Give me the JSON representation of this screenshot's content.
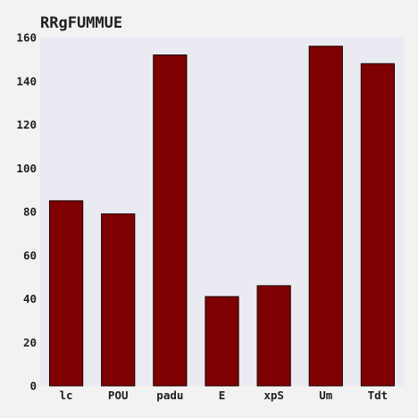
{
  "chart_data": {
    "type": "bar",
    "title": "RRgFUMMUE",
    "xlabel": "",
    "ylabel": "",
    "categories": [
      "lc",
      "POU",
      "padu",
      "E",
      "xpS",
      "Um",
      "Tdt"
    ],
    "values": [
      85,
      79,
      152,
      41,
      46,
      156,
      148
    ],
    "ylim": [
      0,
      160
    ],
    "yticks": [
      0,
      20,
      40,
      60,
      80,
      100,
      120,
      140,
      160
    ],
    "grid": false,
    "legend": "none",
    "colors": {
      "bar": "#7f0000",
      "bar_edge": "#1a0000",
      "plot_background": "#eaeaf2",
      "figure_background": "#f2f2f2",
      "text": "#1f1f1f"
    }
  }
}
